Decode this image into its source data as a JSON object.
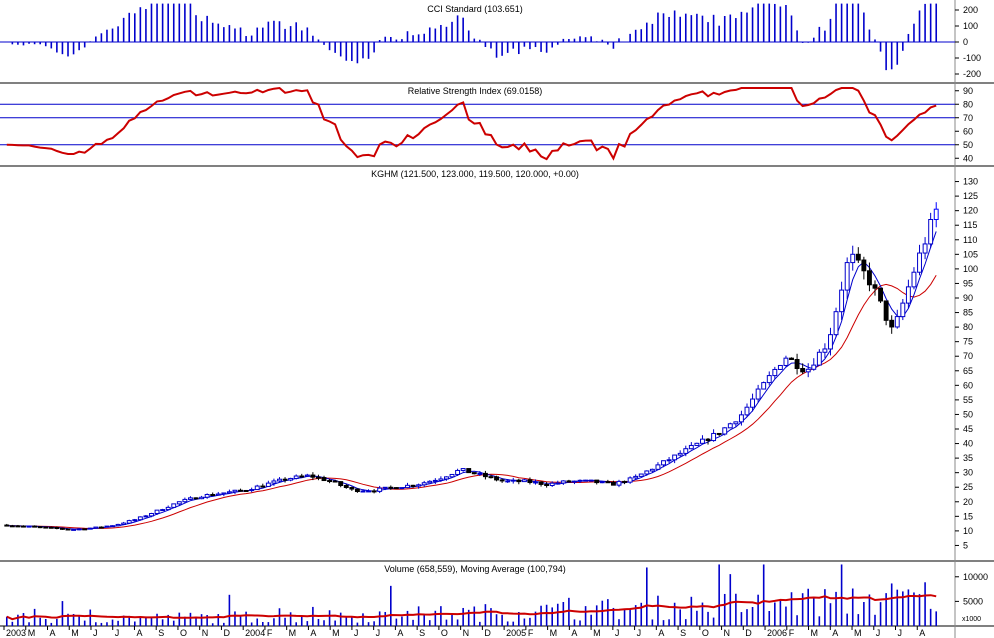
{
  "chart_data": [
    {
      "type": "bar",
      "panel": "cci",
      "title": "CCI Standard (103.651)",
      "ylim": [
        -250,
        250
      ],
      "yticks": [
        "200",
        "100",
        "0",
        "-100",
        "-200"
      ],
      "ytick_values": [
        200,
        100,
        0,
        -100,
        -200
      ],
      "grid": false,
      "bar_color": "#0000cc"
    },
    {
      "type": "line",
      "panel": "rsi",
      "title": "Relative Strength Index (69.0158)",
      "ylim": [
        35,
        95
      ],
      "yticks": [
        "90",
        "80",
        "70",
        "60",
        "50",
        "40"
      ],
      "ytick_values": [
        90,
        80,
        70,
        60,
        50,
        40
      ],
      "reference_lines": [
        80,
        70,
        50
      ],
      "line_color": "#cc0000",
      "reference_color": "#0000cc"
    },
    {
      "type": "candlestick",
      "panel": "price",
      "title": "KGHM (121.500, 123.000, 119.500, 120.000, +0.00)",
      "ylim": [
        0,
        135
      ],
      "yticks": [
        "130",
        "125",
        "120",
        "115",
        "110",
        "105",
        "100",
        "95",
        "90",
        "85",
        "80",
        "75",
        "70",
        "65",
        "60",
        "55",
        "50",
        "45",
        "40",
        "35",
        "30",
        "25",
        "20",
        "15",
        "10",
        "5"
      ],
      "ytick_values": [
        130,
        125,
        120,
        115,
        110,
        105,
        100,
        95,
        90,
        85,
        80,
        75,
        70,
        65,
        60,
        55,
        50,
        45,
        40,
        35,
        30,
        25,
        20,
        15,
        10,
        5
      ],
      "x": [
        "2003-01",
        "2003-02",
        "2003-03",
        "2003-04",
        "2003-05",
        "2003-06",
        "2003-07",
        "2003-08",
        "2003-09",
        "2003-10",
        "2003-11",
        "2003-12",
        "2004-01",
        "2004-02",
        "2004-03",
        "2004-04",
        "2004-05",
        "2004-06",
        "2004-07",
        "2004-08",
        "2004-09",
        "2004-10",
        "2004-11",
        "2004-12",
        "2005-01",
        "2005-02",
        "2005-03",
        "2005-04",
        "2005-05",
        "2005-06",
        "2005-07",
        "2005-08",
        "2005-09",
        "2005-10",
        "2005-11",
        "2005-12",
        "2006-01",
        "2006-02",
        "2006-03",
        "2006-04",
        "2006-05",
        "2006-06",
        "2006-07",
        "2006-08"
      ],
      "close": [
        12,
        11.5,
        11,
        10.5,
        11,
        12,
        14,
        17,
        20,
        22,
        23,
        24,
        26,
        28,
        29,
        27,
        24,
        24,
        25,
        26,
        28,
        31,
        29,
        27,
        27,
        26,
        27,
        27,
        26,
        28,
        32,
        36,
        40,
        44,
        50,
        60,
        70,
        65,
        75,
        105,
        95,
        78,
        100,
        120
      ],
      "series": [
        {
          "name": "Moving average (short)",
          "color": "#0000cc"
        },
        {
          "name": "Moving average (long)",
          "color": "#cc0000"
        }
      ],
      "up_color": "#0000cc",
      "down_color": "#000000",
      "last_bar_color": "#0000ff"
    },
    {
      "type": "bar",
      "panel": "volume",
      "title": "Volume (658,559), Moving Average (100,794)",
      "ylim": [
        0,
        13000
      ],
      "yticks": [
        "10000",
        "5000"
      ],
      "ytick_values": [
        10000,
        5000
      ],
      "unit_label": "x1000",
      "bar_color": "#0000cc",
      "ma_color": "#cc0000"
    }
  ],
  "x_axis": {
    "labels": [
      "2003",
      "M",
      "A",
      "M",
      "J",
      "J",
      "A",
      "S",
      "O",
      "N",
      "D",
      "2004",
      "F",
      "M",
      "A",
      "M",
      "J",
      "J",
      "A",
      "S",
      "O",
      "N",
      "D",
      "2005",
      "F",
      "M",
      "A",
      "M",
      "J",
      "J",
      "A",
      "S",
      "O",
      "N",
      "D",
      "2006",
      "F",
      "M",
      "A",
      "M",
      "J",
      "J",
      "A"
    ]
  }
}
